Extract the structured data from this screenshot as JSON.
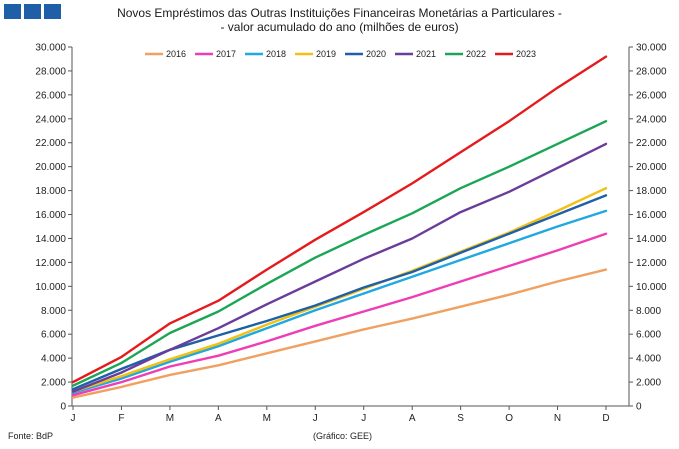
{
  "header": {
    "title_line1": "Novos Empréstimos das Outras Instituições Financeiras Monetárias a Particulares -",
    "title_line2": "- valor acumulado do ano (milhões de euros)"
  },
  "footer": {
    "source": "Fonte: BdP",
    "credit": "(Gráfico: GEE)"
  },
  "chart_data": {
    "type": "line",
    "title": "Novos Empréstimos das Outras Instituições Financeiras Monetárias a Particulares - - valor acumulado do ano (milhões de euros)",
    "categories": [
      "J",
      "F",
      "M",
      "A",
      "M",
      "J",
      "J",
      "A",
      "S",
      "O",
      "N",
      "D"
    ],
    "ylim": [
      0,
      30000
    ],
    "yticks": [
      0,
      2000,
      4000,
      6000,
      8000,
      10000,
      12000,
      14000,
      16000,
      18000,
      20000,
      22000,
      24000,
      26000,
      28000,
      30000
    ],
    "ytick_labels": [
      "0",
      "2.000",
      "4.000",
      "6.000",
      "8.000",
      "10.000",
      "12.000",
      "14.000",
      "16.000",
      "18.000",
      "20.000",
      "22.000",
      "24.000",
      "26.000",
      "28.000",
      "30.000"
    ],
    "secondary_y_axis": true,
    "grid": false,
    "legend_position": "top",
    "series": [
      {
        "name": "2016",
        "color": "#f0a060",
        "values": [
          700,
          1600,
          2600,
          3400,
          4400,
          5400,
          6400,
          7300,
          8300,
          9300,
          10400,
          11400
        ]
      },
      {
        "name": "2017",
        "color": "#ee3db5",
        "values": [
          900,
          2000,
          3300,
          4200,
          5400,
          6700,
          7900,
          9100,
          10400,
          11700,
          13000,
          14400
        ]
      },
      {
        "name": "2018",
        "color": "#20a8e0",
        "values": [
          1100,
          2300,
          3700,
          5000,
          6500,
          8000,
          9400,
          10800,
          12200,
          13600,
          15000,
          16300
        ]
      },
      {
        "name": "2019",
        "color": "#f2c011",
        "values": [
          1200,
          2500,
          3900,
          5200,
          6800,
          8300,
          9800,
          11300,
          12900,
          14500,
          16300,
          18200
        ]
      },
      {
        "name": "2020",
        "color": "#1f5fa8",
        "values": [
          1400,
          3100,
          4700,
          5900,
          7100,
          8400,
          9900,
          11200,
          12800,
          14400,
          16000,
          17600
        ]
      },
      {
        "name": "2021",
        "color": "#6a3d9a",
        "values": [
          1200,
          2800,
          4700,
          6500,
          8500,
          10400,
          12300,
          14000,
          16200,
          17900,
          19900,
          21900
        ]
      },
      {
        "name": "2022",
        "color": "#1aa655",
        "values": [
          1700,
          3600,
          6100,
          7900,
          10200,
          12400,
          14300,
          16100,
          18200,
          20000,
          21900,
          23800
        ]
      },
      {
        "name": "2023",
        "color": "#e41a1c",
        "values": [
          2000,
          4100,
          6900,
          8800,
          11400,
          13900,
          16200,
          18600,
          21200,
          23800,
          26600,
          29200
        ]
      }
    ]
  }
}
